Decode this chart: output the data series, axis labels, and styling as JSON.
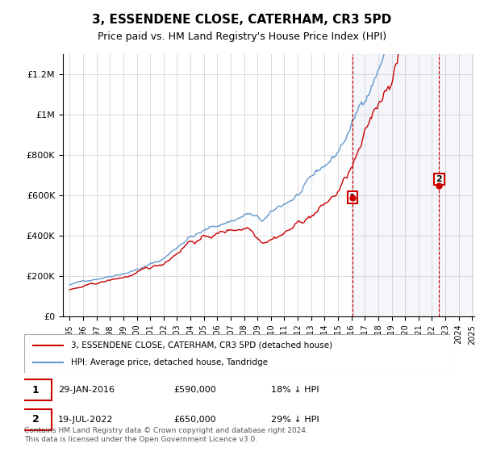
{
  "title": "3, ESSENDENE CLOSE, CATERHAM, CR3 5PD",
  "subtitle": "Price paid vs. HM Land Registry's House Price Index (HPI)",
  "hpi_color": "#6699cc",
  "price_color": "#cc0000",
  "annotation1_date": "2016-01-29",
  "annotation1_price": 590000,
  "annotation1_label": "1",
  "annotation1_pct": "18% ↓ HPI",
  "annotation2_date": "2022-07-19",
  "annotation2_price": 650000,
  "annotation2_label": "2",
  "annotation2_pct": "29% ↓ HPI",
  "legend_price_label": "3, ESSENDENE CLOSE, CATERHAM, CR3 5PD (detached house)",
  "legend_hpi_label": "HPI: Average price, detached house, Tandridge",
  "footer": "Contains HM Land Registry data © Crown copyright and database right 2024.\nThis data is licensed under the Open Government Licence v3.0.",
  "ylim": [
    0,
    1300000
  ],
  "yticks": [
    0,
    200000,
    400000,
    600000,
    800000,
    1000000,
    1200000
  ],
  "ytick_labels": [
    "£0",
    "£200K",
    "£400K",
    "£600K",
    "£800K",
    "£1M",
    "£1.2M"
  ],
  "background_color": "#f0f4ff"
}
